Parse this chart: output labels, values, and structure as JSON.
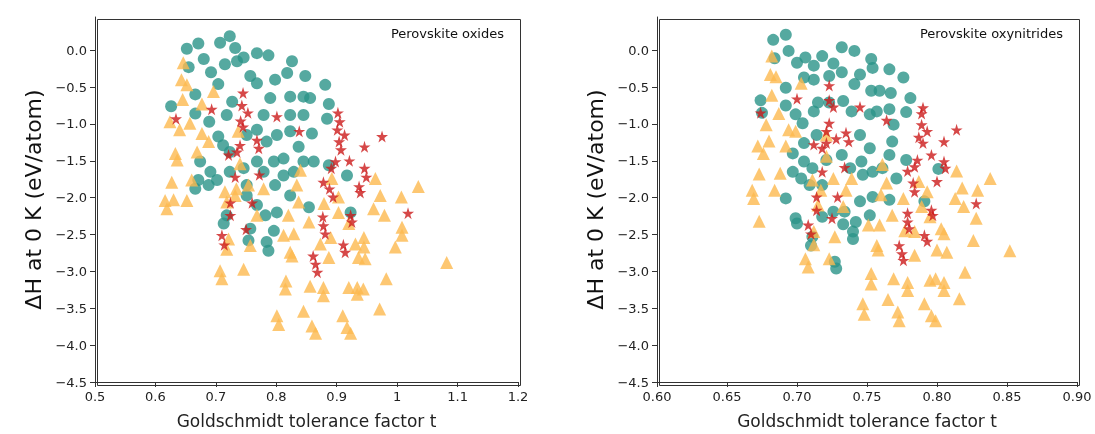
{
  "chart_data": [
    {
      "type": "scatter",
      "xlabel": "Goldschmidt tolerance factor t",
      "ylabel": "ΔH at 0 K (eV/atom)",
      "annotations": [
        "Perovskite oxides"
      ],
      "xlim": [
        0.5,
        1.2
      ],
      "xticks": [
        0.5,
        0.6,
        0.7,
        0.8,
        0.9,
        1.0,
        1.1,
        1.2
      ],
      "ylim": [
        -4.5,
        0.45
      ],
      "yticks": [
        {
          "value": 0,
          "label": "0.0"
        },
        {
          "value": -0.5,
          "label": "−0.5"
        },
        {
          "value": -1,
          "label": "−1.0"
        },
        {
          "value": -1.5,
          "label": "−1.5"
        },
        {
          "value": -2,
          "label": "−2.0"
        },
        {
          "value": -2.5,
          "label": "−2.5"
        },
        {
          "value": -3,
          "label": "−3.0"
        },
        {
          "value": -3.5,
          "label": "−3.5"
        },
        {
          "value": -4,
          "label": "−4.0"
        },
        {
          "value": -4.5,
          "label": "−4.5"
        }
      ],
      "grid": false,
      "series": [
        {
          "color": "#2a9488",
          "marker": "circle",
          "x": [
            0.652,
            0.671,
            0.707,
            0.723,
            0.732,
            0.68,
            0.655,
            0.715,
            0.735,
            0.746,
            0.768,
            0.787,
            0.826,
            0.818,
            0.848,
            0.881,
            0.887,
            0.884,
            0.692,
            0.704,
            0.666,
            0.626,
            0.666,
            0.689,
            0.718,
            0.727,
            0.757,
            0.768,
            0.798,
            0.823,
            0.845,
            0.856,
            0.823,
            0.845,
            0.859,
            0.79,
            0.779,
            0.768,
            0.801,
            0.823,
            0.837,
            0.704,
            0.712,
            0.723,
            0.674,
            0.691,
            0.671,
            0.666,
            0.688,
            0.702,
            0.723,
            0.746,
            0.751,
            0.768,
            0.779,
            0.796,
            0.812,
            0.798,
            0.812,
            0.829,
            0.845,
            0.862,
            0.887,
            0.917,
            0.823,
            0.801,
            0.782,
            0.796,
            0.784,
            0.787,
            0.757,
            0.754,
            0.713,
            0.718,
            0.854,
            0.923,
            0.751,
            0.784,
            0.751,
            0.768
          ],
          "values": [
            0.02,
            0.09,
            0.1,
            0.19,
            0.03,
            -0.12,
            -0.23,
            -0.19,
            -0.15,
            -0.1,
            -0.04,
            -0.07,
            -0.15,
            -0.31,
            -0.35,
            -0.47,
            -0.73,
            -0.93,
            -0.3,
            -0.46,
            -0.6,
            -0.76,
            -0.86,
            -0.97,
            -0.88,
            -0.7,
            -0.35,
            -0.45,
            -0.4,
            -0.63,
            -0.63,
            -0.65,
            -0.88,
            -0.88,
            -1.13,
            -0.65,
            -0.88,
            -1.08,
            -1.15,
            -1.1,
            -1.31,
            -1.17,
            -1.29,
            -1.38,
            -1.51,
            -1.65,
            -1.76,
            -1.88,
            -1.83,
            -1.76,
            -1.65,
            -1.6,
            -1.83,
            -1.51,
            -1.65,
            -1.51,
            -1.47,
            -1.83,
            -1.7,
            -1.65,
            -1.51,
            -1.51,
            -1.56,
            -1.7,
            -1.97,
            -2.2,
            -2.24,
            -2.45,
            -2.6,
            -2.72,
            -2.42,
            -2.58,
            -2.35,
            -2.24,
            -2.13,
            -2.2,
            -1.15,
            -1.24,
            -1.97,
            -2.1
          ]
        },
        {
          "color": "#fdb94f",
          "marker": "triangle",
          "x": [
            0.646,
            0.643,
            0.652,
            0.645,
            0.696,
            0.677,
            0.624,
            0.64,
            0.657,
            0.677,
            0.688,
            0.633,
            0.636,
            0.669,
            0.627,
            0.66,
            0.616,
            0.63,
            0.652,
            0.619,
            0.715,
            0.734,
            0.718,
            0.754,
            0.779,
            0.768,
            0.84,
            0.834,
            0.837,
            0.82,
            0.854,
            0.812,
            0.829,
            0.892,
            0.903,
            0.879,
            0.903,
            0.92,
            0.964,
            0.972,
            0.961,
            0.979,
            1.007,
            1.035,
            1.008,
            1.008,
            0.997,
            0.945,
            0.931,
            0.945,
            0.936,
            0.947,
            0.89,
            0.873,
            0.887,
            0.823,
            0.826,
            0.721,
            0.718,
            0.757,
            1.082,
            0.707,
            0.71,
            0.746,
            0.816,
            0.815,
            0.856,
            0.878,
            0.878,
            0.92,
            0.934,
            0.944,
            0.934,
            0.982,
            0.971,
            0.801,
            0.804,
            0.845,
            0.859,
            0.865,
            0.91,
            0.917,
            0.923,
            0.732,
            0.74,
            0.737
          ],
          "values": [
            -0.17,
            -0.4,
            -0.47,
            -0.67,
            -0.56,
            -0.73,
            -0.97,
            -1.08,
            -0.99,
            -1.13,
            -1.24,
            -1.4,
            -1.49,
            -1.38,
            -1.79,
            -1.76,
            -2.04,
            -2.03,
            -2.04,
            -2.15,
            -1.92,
            -1.88,
            -2.06,
            -1.83,
            -1.88,
            -2.24,
            -1.63,
            -1.83,
            -2.06,
            -2.24,
            -2.33,
            -2.51,
            -2.49,
            -1.74,
            -1.99,
            -2.08,
            -2.2,
            -2.35,
            -1.74,
            -1.97,
            -2.15,
            -2.24,
            -1.99,
            -1.85,
            -2.4,
            -2.51,
            -2.67,
            -2.54,
            -2.63,
            -2.67,
            -2.81,
            -2.83,
            -2.54,
            -2.63,
            -2.81,
            -2.74,
            -2.79,
            -2.56,
            -2.7,
            -2.65,
            -2.88,
            -2.99,
            -3.1,
            -2.97,
            -3.13,
            -3.24,
            -3.2,
            -3.22,
            -3.33,
            -3.22,
            -3.22,
            -3.24,
            -3.31,
            -3.1,
            -3.51,
            -3.6,
            -3.72,
            -3.54,
            -3.74,
            -3.84,
            -3.6,
            -3.76,
            -3.84,
            -1.97,
            -1.54,
            -1.1
          ]
        },
        {
          "color": "#cc1a1a",
          "marker": "star",
          "x": [
            0.634,
            0.693,
            0.745,
            0.743,
            0.753,
            0.741,
            0.745,
            0.801,
            0.838,
            0.721,
            0.735,
            0.74,
            0.768,
            0.771,
            0.732,
            0.772,
            0.724,
            0.76,
            0.724,
            0.75,
            0.71,
            0.714,
            0.902,
            0.905,
            0.901,
            0.913,
            0.904,
            0.907,
            0.898,
            0.891,
            0.921,
            0.946,
            0.975,
            0.946,
            0.949,
            0.878,
            0.888,
            0.894,
            0.937,
            0.939,
            0.877,
            0.878,
            0.881,
            0.923,
            0.925,
            0.911,
            0.914,
            0.861,
            0.865,
            0.868,
            1.018
          ],
          "values": [
            -0.93,
            -0.8,
            -0.58,
            -0.75,
            -0.85,
            -0.96,
            -1.04,
            -0.9,
            -1.1,
            -1.42,
            -1.38,
            -1.29,
            -1.22,
            -1.33,
            -1.72,
            -1.69,
            -2.07,
            -2.07,
            -2.24,
            -2.43,
            -2.51,
            -2.64,
            -0.85,
            -0.97,
            -1.08,
            -1.15,
            -1.24,
            -1.35,
            -1.51,
            -1.6,
            -1.5,
            -1.31,
            -1.17,
            -1.6,
            -1.72,
            -1.79,
            -1.88,
            -1.99,
            -1.85,
            -1.93,
            -2.26,
            -2.38,
            -2.49,
            -2.24,
            -2.33,
            -2.64,
            -2.74,
            -2.79,
            -2.9,
            -3.01,
            -2.21
          ]
        }
      ]
    },
    {
      "type": "scatter",
      "xlabel": "Goldschmidt tolerance factor t",
      "ylabel": "ΔH at 0 K (eV/atom)",
      "annotations": [
        "Perovskite oxynitrides"
      ],
      "xlim": [
        0.6,
        0.9
      ],
      "xticks": [
        {
          "value": 0.6,
          "label": "0.60"
        },
        {
          "value": 0.65,
          "label": "0.65"
        },
        {
          "value": 0.7,
          "label": "0.70"
        },
        {
          "value": 0.75,
          "label": "0.75"
        },
        {
          "value": 0.8,
          "label": "0.80"
        },
        {
          "value": 0.85,
          "label": "0.85"
        },
        {
          "value": 0.9,
          "label": "0.90"
        }
      ],
      "ylim": [
        -4.5,
        0.45
      ],
      "yticks": [
        {
          "value": 0,
          "label": "0.0"
        },
        {
          "value": -0.5,
          "label": "−0.5"
        },
        {
          "value": -1,
          "label": "−1.0"
        },
        {
          "value": -1.5,
          "label": "−1.5"
        },
        {
          "value": -2,
          "label": "−2.0"
        },
        {
          "value": -2.5,
          "label": "−2.5"
        },
        {
          "value": -3,
          "label": "−3.0"
        },
        {
          "value": -3.5,
          "label": "−3.5"
        },
        {
          "value": -4,
          "label": "−4.0"
        },
        {
          "value": -4.5,
          "label": "−4.5"
        }
      ],
      "grid": false,
      "series": [
        {
          "color": "#2a9488",
          "marker": "circle",
          "x": [
            0.692,
            0.683,
            0.694,
            0.684,
            0.7,
            0.706,
            0.712,
            0.718,
            0.726,
            0.732,
            0.741,
            0.753,
            0.754,
            0.766,
            0.776,
            0.781,
            0.778,
            0.705,
            0.712,
            0.723,
            0.732,
            0.741,
            0.745,
            0.753,
            0.759,
            0.767,
            0.692,
            0.674,
            0.675,
            0.692,
            0.699,
            0.704,
            0.715,
            0.712,
            0.723,
            0.733,
            0.739,
            0.752,
            0.757,
            0.766,
            0.769,
            0.697,
            0.705,
            0.714,
            0.705,
            0.697,
            0.703,
            0.711,
            0.709,
            0.718,
            0.721,
            0.732,
            0.738,
            0.745,
            0.746,
            0.747,
            0.754,
            0.752,
            0.768,
            0.766,
            0.761,
            0.771,
            0.778,
            0.766,
            0.754,
            0.745,
            0.734,
            0.742,
            0.752,
            0.733,
            0.726,
            0.718,
            0.699,
            0.7,
            0.711,
            0.71,
            0.692,
            0.74,
            0.74,
            0.727,
            0.728,
            0.801,
            0.791
          ],
          "values": [
            0.21,
            0.14,
            -0.01,
            -0.11,
            -0.17,
            -0.1,
            -0.21,
            -0.08,
            -0.18,
            0.04,
            -0.01,
            -0.12,
            -0.24,
            -0.26,
            -0.37,
            -0.65,
            -0.84,
            -0.37,
            -0.4,
            -0.35,
            -0.3,
            -0.46,
            -0.33,
            -0.55,
            -0.55,
            -0.58,
            -0.51,
            -0.68,
            -0.85,
            -0.75,
            -0.87,
            -0.99,
            -0.71,
            -0.83,
            -0.71,
            -0.69,
            -0.83,
            -0.87,
            -0.83,
            -0.8,
            -1.01,
            -1.4,
            -1.26,
            -1.15,
            -1.51,
            -1.65,
            -1.74,
            -1.6,
            -1.83,
            -1.83,
            -1.49,
            -1.42,
            -1.6,
            -1.15,
            -1.51,
            -1.69,
            -1.65,
            -1.33,
            -1.24,
            -1.42,
            -1.6,
            -1.74,
            -1.49,
            -2.03,
            -1.99,
            -2.05,
            -2.19,
            -2.33,
            -2.24,
            -2.36,
            -2.19,
            -2.26,
            -2.28,
            -2.35,
            -2.53,
            -2.65,
            -2.01,
            -2.46,
            -2.56,
            -2.87,
            -2.96,
            -1.61,
            -2.05
          ]
        },
        {
          "color": "#fdb94f",
          "marker": "triangle",
          "x": [
            0.682,
            0.681,
            0.685,
            0.682,
            0.687,
            0.678,
            0.68,
            0.672,
            0.676,
            0.692,
            0.694,
            0.699,
            0.703,
            0.673,
            0.688,
            0.684,
            0.668,
            0.669,
            0.673,
            0.721,
            0.721,
            0.711,
            0.717,
            0.726,
            0.739,
            0.735,
            0.733,
            0.715,
            0.712,
            0.712,
            0.706,
            0.708,
            0.727,
            0.723,
            0.761,
            0.764,
            0.76,
            0.768,
            0.751,
            0.759,
            0.776,
            0.777,
            0.784,
            0.787,
            0.793,
            0.789,
            0.795,
            0.803,
            0.805,
            0.8,
            0.807,
            0.784,
            0.757,
            0.758,
            0.753,
            0.753,
            0.769,
            0.765,
            0.747,
            0.748,
            0.772,
            0.773,
            0.779,
            0.779,
            0.791,
            0.796,
            0.799,
            0.795,
            0.799,
            0.805,
            0.805,
            0.816,
            0.82,
            0.826,
            0.828,
            0.829,
            0.819,
            0.814,
            0.818,
            0.813,
            0.838,
            0.852
          ],
          "values": [
            -0.08,
            -0.33,
            -0.36,
            -0.61,
            -0.86,
            -1.01,
            -1.23,
            -1.3,
            -1.4,
            -1.3,
            -1.08,
            -1.1,
            -0.45,
            -1.68,
            -1.67,
            -1.9,
            -1.9,
            -2.01,
            -2.32,
            -1.15,
            -1.44,
            -1.76,
            -1.9,
            -1.74,
            -1.74,
            -1.9,
            -2.12,
            -2.1,
            -2.46,
            -2.64,
            -2.83,
            -2.94,
            -2.53,
            -2.83,
            -1.55,
            -1.8,
            -1.96,
            -2.24,
            -2.37,
            -2.37,
            -2.01,
            -2.45,
            -2.46,
            -1.78,
            -1.92,
            -2.12,
            -2.26,
            -2.42,
            -2.49,
            -2.71,
            -2.74,
            -2.78,
            -2.65,
            -2.71,
            -3.03,
            -3.17,
            -3.1,
            -3.38,
            -3.44,
            -3.58,
            -3.55,
            -3.67,
            -3.15,
            -3.26,
            -3.44,
            -3.6,
            -3.67,
            -3.12,
            -3.1,
            -3.15,
            -3.26,
            -3.37,
            -3.01,
            -2.58,
            -2.28,
            -1.9,
            -2.12,
            -1.64,
            -1.87,
            -2.01,
            -1.74,
            -2.72
          ]
        },
        {
          "color": "#cc1a1a",
          "marker": "star",
          "x": [
            0.674,
            0.7,
            0.723,
            0.723,
            0.726,
            0.745,
            0.723,
            0.721,
            0.728,
            0.735,
            0.737,
            0.721,
            0.712,
            0.718,
            0.718,
            0.734,
            0.714,
            0.729,
            0.714,
            0.725,
            0.708,
            0.71,
            0.764,
            0.79,
            0.789,
            0.793,
            0.789,
            0.787,
            0.79,
            0.796,
            0.786,
            0.784,
            0.779,
            0.805,
            0.806,
            0.805,
            0.814,
            0.8,
            0.783,
            0.784,
            0.796,
            0.797,
            0.779,
            0.779,
            0.78,
            0.791,
            0.793,
            0.773,
            0.775,
            0.776,
            0.828
          ],
          "values": [
            -0.85,
            -0.66,
            -0.48,
            -0.68,
            -0.77,
            -0.77,
            -0.99,
            -1.1,
            -1.2,
            -1.12,
            -1.24,
            -1.26,
            -1.28,
            -1.33,
            -1.65,
            -1.59,
            -1.99,
            -1.99,
            -2.17,
            -2.28,
            -2.37,
            -2.49,
            -0.95,
            -0.78,
            -0.86,
            -1.1,
            -1.01,
            -1.18,
            -1.26,
            -1.42,
            -1.49,
            -1.58,
            -1.64,
            -1.51,
            -1.6,
            -1.24,
            -1.08,
            -1.78,
            -1.8,
            -1.92,
            -2.17,
            -2.24,
            -2.21,
            -2.33,
            -2.42,
            -2.51,
            -2.59,
            -2.65,
            -2.76,
            -2.85,
            -2.08
          ]
        }
      ]
    }
  ]
}
